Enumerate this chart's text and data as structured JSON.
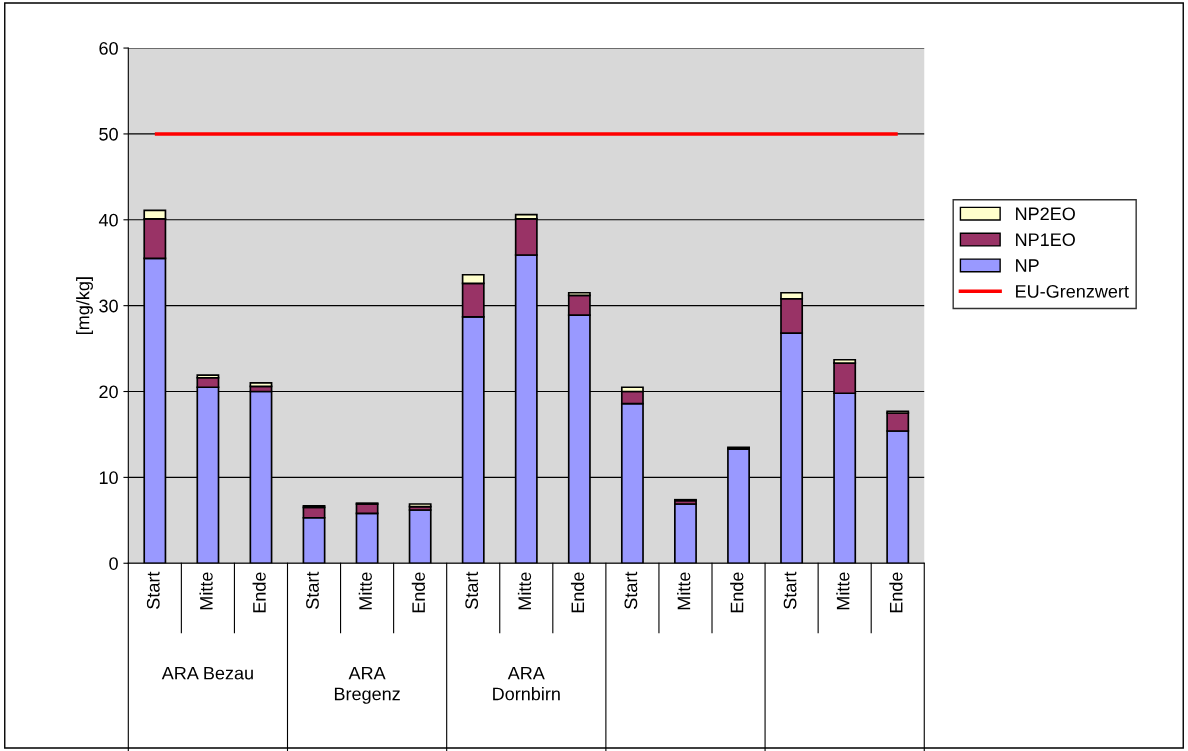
{
  "chart_data": {
    "type": "bar",
    "stacked": true,
    "ylabel": "[mg/kg]",
    "categories": [
      "Start",
      "Mitte",
      "Ende",
      "Start",
      "Mitte",
      "Ende",
      "Start",
      "Mitte",
      "Ende",
      "Start",
      "Mitte",
      "Ende",
      "Start",
      "Mitte",
      "Ende"
    ],
    "series": [
      {
        "name": "NP",
        "color": "#9999ff",
        "values": [
          35.5,
          20.5,
          20.0,
          5.3,
          5.8,
          6.2,
          28.7,
          35.9,
          28.9,
          18.6,
          6.9,
          13.3,
          26.8,
          19.8,
          15.4
        ]
      },
      {
        "name": "NP1EO",
        "color": "#993366",
        "values": [
          4.6,
          1.1,
          0.6,
          1.2,
          1.1,
          0.4,
          3.9,
          4.2,
          2.3,
          1.4,
          0.4,
          0.1,
          4.0,
          3.5,
          2.1
        ]
      },
      {
        "name": "NP2EO",
        "color": "#ffffcc",
        "values": [
          1.0,
          0.3,
          0.4,
          0.2,
          0.1,
          0.3,
          1.0,
          0.5,
          0.3,
          0.5,
          0.1,
          0.1,
          0.7,
          0.4,
          0.2
        ]
      }
    ],
    "ref_lines": [
      {
        "axis": "y",
        "value": 50,
        "label": "EU-Grenzwert",
        "color": "#ff0000"
      }
    ],
    "annotations": [
      "ARA Bezau",
      "ARA\nBregenz",
      "ARA\nDornbirn"
    ],
    "ylim": [
      0,
      60
    ],
    "yticks": [
      0,
      10,
      20,
      30,
      40,
      50,
      60
    ],
    "grid": "y",
    "legend": "right"
  }
}
